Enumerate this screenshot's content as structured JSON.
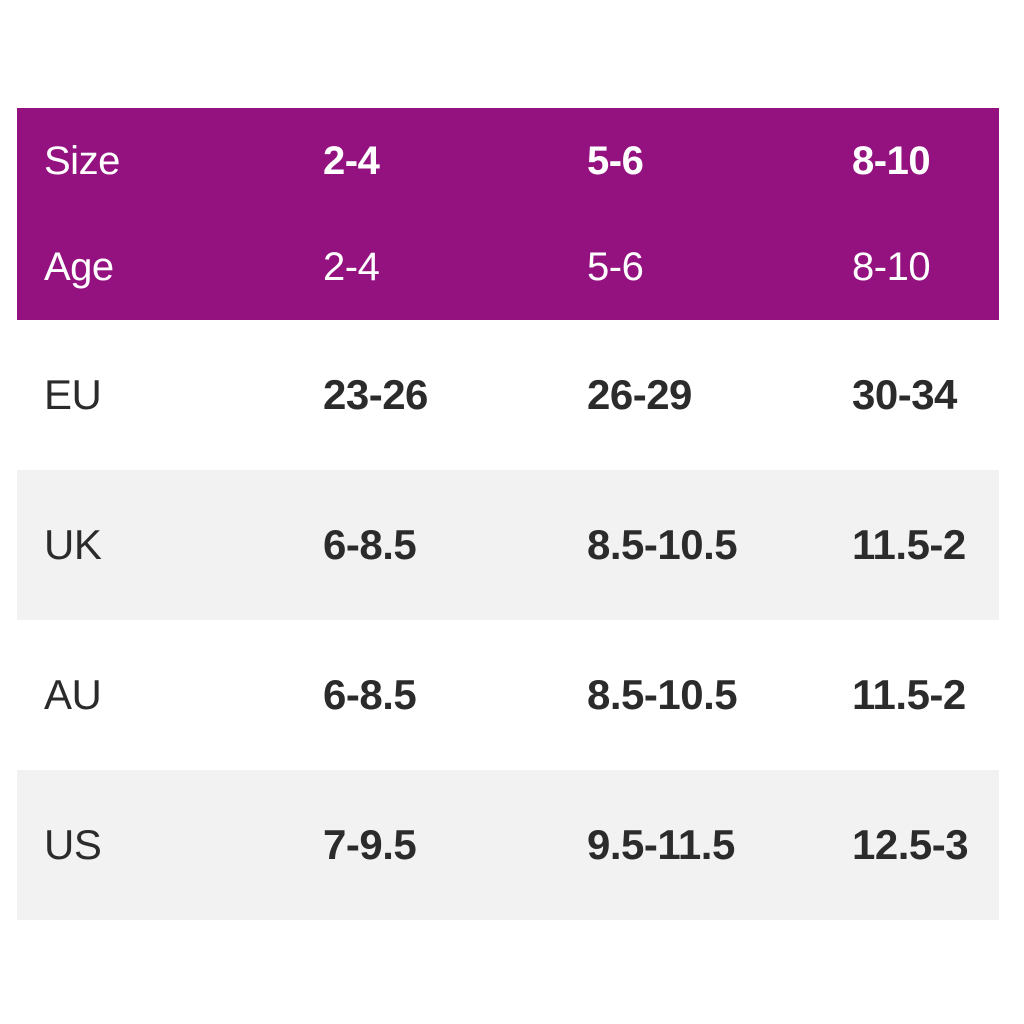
{
  "colors": {
    "header_background": "#941180",
    "header_text": "#ffffff",
    "body_text": "#2b2b2b",
    "row_alternate_background": "#f2f2f2",
    "row_background": "#ffffff"
  },
  "table": {
    "header_rows": [
      {
        "label": "Size",
        "values": [
          "2-4",
          "5-6",
          "8-10"
        ]
      },
      {
        "label": "Age",
        "values": [
          "2-4",
          "5-6",
          "8-10"
        ]
      }
    ],
    "body_rows": [
      {
        "label": "EU",
        "values": [
          "23-26",
          "26-29",
          "30-34"
        ]
      },
      {
        "label": "UK",
        "values": [
          "6-8.5",
          "8.5-10.5",
          "11.5-2"
        ]
      },
      {
        "label": "AU",
        "values": [
          "6-8.5",
          "8.5-10.5",
          "11.5-2"
        ]
      },
      {
        "label": "US",
        "values": [
          "7-9.5",
          "9.5-11.5",
          "12.5-3"
        ]
      }
    ]
  },
  "chart_data": {
    "type": "table",
    "columns": [
      "Size",
      "2-4",
      "5-6",
      "8-10"
    ],
    "rows": [
      [
        "Age",
        "2-4",
        "5-6",
        "8-10"
      ],
      [
        "EU",
        "23-26",
        "26-29",
        "30-34"
      ],
      [
        "UK",
        "6-8.5",
        "8.5-10.5",
        "11.5-2"
      ],
      [
        "AU",
        "6-8.5",
        "8.5-10.5",
        "11.5-2"
      ],
      [
        "US",
        "7-9.5",
        "9.5-11.5",
        "12.5-3"
      ]
    ],
    "title": "",
    "legend": "none",
    "grid": "off"
  }
}
